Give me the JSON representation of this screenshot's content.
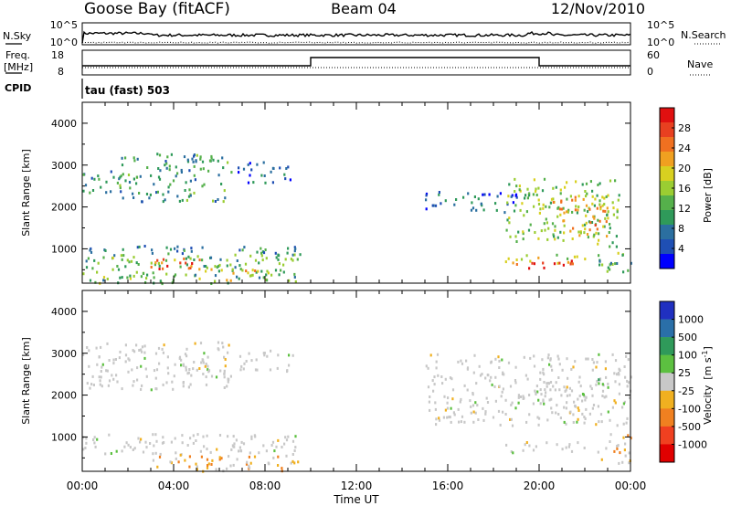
{
  "header": {
    "station": "Goose Bay (fitACF)",
    "beam": "Beam 04",
    "date": "12/Nov/2010"
  },
  "panels_top": {
    "nsky_label": "N.Sky",
    "nsky_ticks": [
      "10^5",
      "10^0"
    ],
    "nsearch_label": "N.Search",
    "nsearch_ticks": [
      "10^5",
      "10^0"
    ],
    "freq_label": "Freq.",
    "freq_unit": "[MHz]",
    "freq_ticks": [
      "18",
      "8"
    ],
    "nave_label": "Nave",
    "nave_ticks": [
      "60",
      "0"
    ],
    "cpid_label": "CPID",
    "cpid_text": "tau (fast) 503"
  },
  "chart_data": [
    {
      "type": "heatmap",
      "quantity": "Power",
      "ylabel": "Slant Range [km]",
      "yticks": [
        "1000",
        "2000",
        "3000",
        "4000"
      ],
      "ylim": [
        180,
        4500
      ],
      "xlim_hours": [
        0,
        24
      ],
      "colorbar": {
        "label": "Power [dB]",
        "ticks": [
          "4",
          "8",
          "12",
          "16",
          "20",
          "24",
          "28"
        ],
        "range": [
          0,
          30
        ],
        "colors": [
          "#0000ff",
          "#1f4fb4",
          "#2b6fa0",
          "#2f9a5a",
          "#55b04b",
          "#9acd32",
          "#d8d020",
          "#f0a020",
          "#f07020",
          "#e84020",
          "#e01010"
        ]
      },
      "regions": [
        {
          "t0": 0.0,
          "t1": 1.6,
          "r0": 2350,
          "r1": 2900,
          "power": 8
        },
        {
          "t0": 1.6,
          "t1": 6.5,
          "r0": 2150,
          "r1": 3300,
          "power": 10
        },
        {
          "t0": 6.8,
          "t1": 9.2,
          "r0": 2600,
          "r1": 3100,
          "power": 5
        },
        {
          "t0": 0.0,
          "t1": 9.5,
          "r0": 900,
          "r1": 1100,
          "power": 8
        },
        {
          "t0": 0.0,
          "t1": 9.5,
          "r0": 200,
          "r1": 900,
          "power": 12
        },
        {
          "t0": 2.5,
          "t1": 5.2,
          "r0": 500,
          "r1": 800,
          "power": 24
        },
        {
          "t0": 4.8,
          "t1": 8.5,
          "r0": 250,
          "r1": 550,
          "power": 18
        },
        {
          "t0": 15.0,
          "t1": 19.0,
          "r0": 1900,
          "r1": 2400,
          "power": 6
        },
        {
          "t0": 18.5,
          "t1": 23.5,
          "r0": 1200,
          "r1": 2700,
          "power": 14
        },
        {
          "t0": 20.5,
          "t1": 23.0,
          "r0": 1300,
          "r1": 2300,
          "power": 20
        },
        {
          "t0": 18.5,
          "t1": 22.0,
          "r0": 650,
          "r1": 900,
          "power": 18
        },
        {
          "t0": 19.5,
          "t1": 21.5,
          "r0": 550,
          "r1": 800,
          "power": 28
        },
        {
          "t0": 22.5,
          "t1": 24.0,
          "r0": 450,
          "r1": 1200,
          "power": 12
        }
      ]
    },
    {
      "type": "heatmap",
      "quantity": "Velocity",
      "ylabel": "Slant Range [km]",
      "yticks": [
        "1000",
        "2000",
        "3000",
        "4000"
      ],
      "ylim": [
        180,
        4500
      ],
      "xlim_hours": [
        0,
        24
      ],
      "xlabel": "Time UT",
      "xticks": [
        "00:00",
        "04:00",
        "08:00",
        "12:00",
        "16:00",
        "20:00",
        "00:00"
      ],
      "colorbar": {
        "label": "Velocity",
        "unit_label": "[m s",
        "unit_exponent": "-1",
        "ticks": [
          "1000",
          "500",
          "100",
          "25",
          "-25",
          "-100",
          "-500",
          "-1000"
        ],
        "colors": [
          "#2030c0",
          "#2a6fa8",
          "#2f9a5a",
          "#5cc040",
          "#c8c8c8",
          "#f0b020",
          "#f08020",
          "#f04020",
          "#e00000"
        ]
      },
      "regions": [
        {
          "t0": 0.0,
          "t1": 6.5,
          "r0": 2150,
          "r1": 3300,
          "class": "ground"
        },
        {
          "t0": 6.8,
          "t1": 9.2,
          "r0": 2600,
          "r1": 3100,
          "class": "ground"
        },
        {
          "t0": 0.0,
          "t1": 9.5,
          "r0": 600,
          "r1": 1100,
          "class": "ground"
        },
        {
          "t0": 3.0,
          "t1": 9.5,
          "r0": 200,
          "r1": 600,
          "class": "negative"
        },
        {
          "t0": 15.0,
          "t1": 24.0,
          "r0": 1300,
          "r1": 3000,
          "class": "ground"
        },
        {
          "t0": 18.5,
          "t1": 22.0,
          "r0": 650,
          "r1": 900,
          "class": "ground"
        },
        {
          "t0": 22.5,
          "t1": 24.0,
          "r0": 400,
          "r1": 1100,
          "class": "negative"
        },
        {
          "t0": 22.5,
          "t1": 23.0,
          "r0": 2200,
          "r1": 2600,
          "class": "positive"
        }
      ]
    }
  ]
}
